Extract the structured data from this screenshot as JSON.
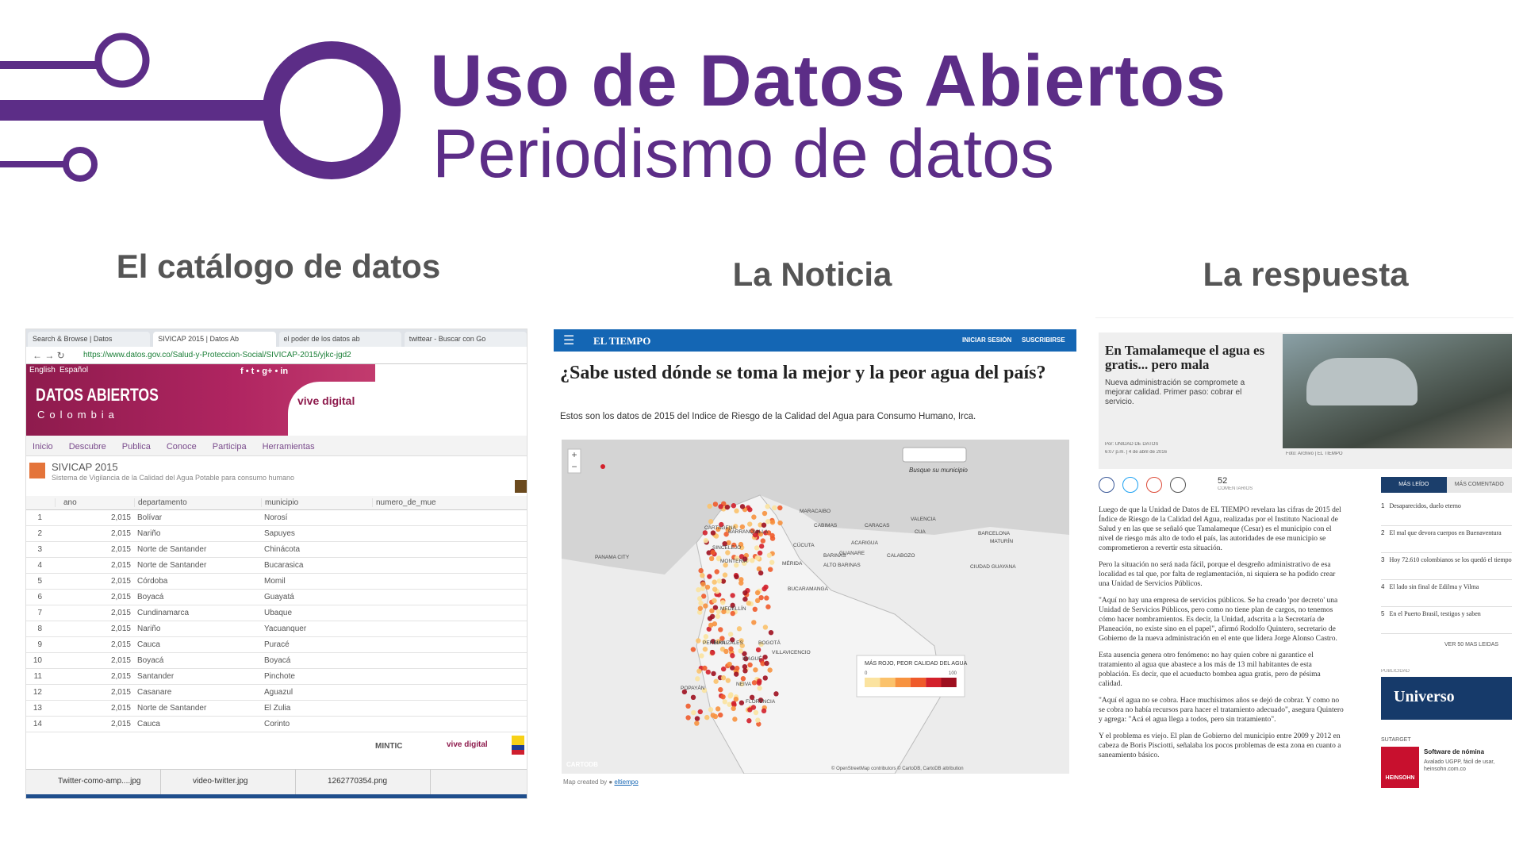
{
  "header": {
    "title": "Uso de Datos Abiertos",
    "subtitle": "Periodismo de datos"
  },
  "sections": [
    {
      "heading": "El catálogo de datos"
    },
    {
      "heading": "La Noticia"
    },
    {
      "heading": "La respuesta"
    }
  ],
  "catalog": {
    "tabs": [
      "Search & Browse | Datos",
      "SIVICAP 2015 | Datos Ab",
      "el poder de los datos ab",
      "twittear - Buscar con Go"
    ],
    "url": "https://www.datos.gov.co/Salud-y-Proteccion-Social/SIVICAP-2015/yjkc-jgd2",
    "languages": [
      "English",
      "Español"
    ],
    "brand": "DATOS ABIERTOS",
    "brand_sub": "Colombia",
    "partner": "vive digital",
    "nav": [
      "Inicio",
      "Descubre",
      "Publica",
      "Conoce",
      "Participa",
      "Herramientas"
    ],
    "dataset_title": "SIVICAP 2015",
    "dataset_desc": "Sistema de Vigilancia de la Calidad del Agua Potable para consumo humano",
    "columns": [
      "ano",
      "departamento",
      "municipio",
      "numero_de_mue"
    ],
    "rows": [
      [
        "1",
        "2,015",
        "Bolívar",
        "Norosí"
      ],
      [
        "2",
        "2,015",
        "Nariño",
        "Sapuyes"
      ],
      [
        "3",
        "2,015",
        "Norte de Santander",
        "Chinácota"
      ],
      [
        "4",
        "2,015",
        "Norte de Santander",
        "Bucarasica"
      ],
      [
        "5",
        "2,015",
        "Córdoba",
        "Momil"
      ],
      [
        "6",
        "2,015",
        "Boyacá",
        "Guayatá"
      ],
      [
        "7",
        "2,015",
        "Cundinamarca",
        "Ubaque"
      ],
      [
        "8",
        "2,015",
        "Nariño",
        "Yacuanquer"
      ],
      [
        "9",
        "2,015",
        "Cauca",
        "Puracé"
      ],
      [
        "10",
        "2,015",
        "Boyacá",
        "Boyacá"
      ],
      [
        "11",
        "2,015",
        "Santander",
        "Pinchote"
      ],
      [
        "12",
        "2,015",
        "Casanare",
        "Aguazul"
      ],
      [
        "13",
        "2,015",
        "Norte de Santander",
        "El Zulia"
      ],
      [
        "14",
        "2,015",
        "Cauca",
        "Corinto"
      ]
    ],
    "footer_logo": "MINTIC",
    "downloads": [
      "Twitter-como-amp....jpg",
      "video-twitter.jpg",
      "1262770354.png"
    ]
  },
  "news": {
    "brand": "EL TIEMPO",
    "nav": [
      "INICIAR SESIÓN",
      "SUSCRIBIRSE"
    ],
    "headline": "¿Sabe usted dónde se toma la mejor y la peor agua del país?",
    "dek": "Estos son los datos de 2015 del Índice de Riesgo de la Calidad del Agua para Consumo Humano, Irca.",
    "search": "Busque su municipio",
    "map_labels": [
      "PANAMA CITY",
      "BARRANQUILLA",
      "CARTAGENA",
      "SINCELEJO",
      "MONTERÍA",
      "MEDELLÍN",
      "MANIZALES",
      "BOGOTÁ",
      "PEREIRA",
      "IBAGUÉ",
      "NEIVA",
      "POPAYÁN",
      "FLORENCIA",
      "CÚCUTA",
      "BUCARAMANGA",
      "VILLAVICENCIO",
      "CARACAS",
      "MARACAIBO",
      "VALENCIA",
      "BARINAS",
      "MÉRIDA",
      "ALTO BARINAS",
      "GUANARE",
      "ACARIGUA",
      "CALABOZO",
      "CUA",
      "MATURÍN",
      "CIUDAD GUAYANA",
      "BARCELONA",
      "CABIMAS"
    ],
    "legend_title": "MÁS ROJO, PEOR CALIDAD DEL AGUA",
    "legend_min": "0",
    "legend_max": "100",
    "map_credit": "CARTODB",
    "attribution": "© OpenStreetMap contributors © CartoDB, CartoDB attribution",
    "created_by": "Map created by",
    "creator": "eltiempo"
  },
  "response": {
    "headline": "En Tamalameque el agua es gratis... pero mala",
    "dek": "Nueva administración se compromete a mejorar calidad. Primer paso: cobrar el servicio.",
    "byline": "Por: UNIDAD DE DATOS",
    "date": "6:07 p.m. | 4 de abril de 2016",
    "photo_credit": "Foto: Archivo | EL TIEMPO",
    "comments_count": "52",
    "comments_label": "COMENTARIOS",
    "paragraphs": [
      "Luego de que la Unidad de Datos de EL TIEMPO revelara las cifras de 2015 del Índice de Riesgo de la Calidad del Agua, realizadas por el Instituto Nacional de Salud y en las que se señaló que Tamalameque (Cesar) es el municipio con el nivel de riesgo más alto de todo el país, las autoridades de ese municipio se comprometieron a revertir esta situación.",
      "Pero la situación no será nada fácil, porque el desgreño administrativo de esa localidad es tal que, por falta de reglamentación, ni siquiera se ha podido crear una Unidad de Servicios Públicos.",
      "\"Aquí no hay una empresa de servicios públicos. Se ha creado 'por decreto' una Unidad de Servicios Públicos, pero como no tiene plan de cargos, no tenemos cómo hacer nombramientos. Es decir, la Unidad, adscrita a la Secretaría de Planeación, no existe sino en el papel\", afirmó Rodolfo Quintero, secretario de Gobierno de la nueva administración en el ente que lidera Jorge Alonso Castro.",
      "Esta ausencia genera otro fenómeno: no hay quien cobre ni garantice el tratamiento al agua que abastece a los más de 13 mil habitantes de esta población. Es decir, que el acueducto bombea agua gratis, pero de pésima calidad.",
      "\"Aquí el agua no se cobra. Hace muchísimos años se dejó de cobrar. Y como no se cobra no había recursos para hacer el tratamiento adecuado\", asegura Quintero y agrega: \"Acá el agua llega a todos, pero sin tratamiento\".",
      "Y el problema es viejo. El plan de Gobierno del municipio entre 2009 y 2012 en cabeza de Boris Pisciotti, señalaba los pocos problemas de esta zona en cuanto a saneamiento básico."
    ],
    "sidebar_tabs": [
      "MÁS LEÍDO",
      "MÁS COMENTADO"
    ],
    "most_read": [
      "Desaparecidos, duelo eterno",
      "El mal que devora cuerpos en Buenaventura",
      "Hoy 72.610 colombianos se los quedó el tiempo",
      "El lado sin final de Edilma y Vilma",
      "En el Puerto Brasil, testigos y saben"
    ],
    "more_link": "VER 50 MÁS LEÍDAS",
    "ad_label": "PUBLICIDAD",
    "ad_brand": "Universo",
    "ad2_label": "SUTARGET",
    "ad2_brand": "HEINSOHN",
    "ad2_title": "Software de nómina",
    "ad2_text": "Avalado UGPP, fácil de usar, heinsohn.com.co"
  }
}
